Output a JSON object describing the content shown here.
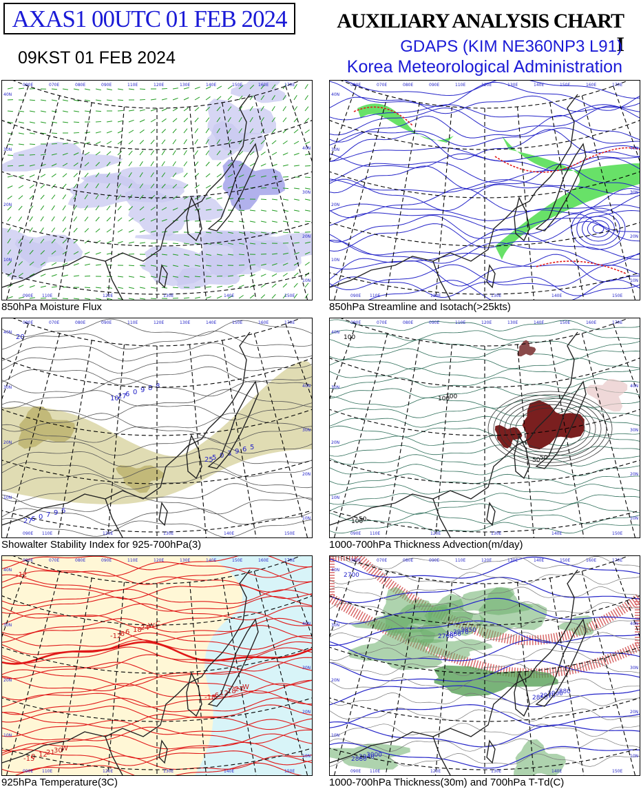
{
  "header": {
    "product_id": "AXAS1  00UTC 01 FEB 2024",
    "local_time": "09KST 01 FEB 2024",
    "chart_title": "AUXILIARY ANALYSIS CHART  I",
    "model": "GDAPS (KIM NE360NP3 L91)",
    "agency": "Korea Meteorological Administration"
  },
  "panels": [
    {
      "id": "moisture-flux",
      "caption": "850hPa Moisture Flux",
      "theme": "moisture"
    },
    {
      "id": "streamline-isotach",
      "caption": "850hPa Streamline and Isotach(>25kts)",
      "theme": "stream"
    },
    {
      "id": "showalter",
      "caption": "Showalter Stability Index for 925-700hPa(3)",
      "theme": "ssi",
      "labels": [
        "20",
        "10",
        "25",
        "27",
        "27",
        "5",
        "6",
        "6",
        "0",
        "0",
        "0",
        "3",
        "7",
        "9",
        "9",
        "9",
        "8",
        "6",
        "6",
        "8",
        "5"
      ]
    },
    {
      "id": "thickness-advection",
      "caption": "1000-700hPa Thickness Advection(m/day)",
      "theme": "adv",
      "labels": [
        "100",
        "100",
        "50",
        "100",
        "100",
        "50",
        "50"
      ]
    },
    {
      "id": "temperature-925",
      "caption": "925hPa Temperature(3C)",
      "theme": "temp",
      "labels": [
        "-12",
        "-12",
        "-18",
        "-15",
        "-6",
        "-6",
        "0",
        "6",
        "12",
        "12",
        "18",
        "18",
        "21",
        "24",
        "27",
        "30",
        "W",
        "W",
        "W",
        "C"
      ]
    },
    {
      "id": "thickness-ttd",
      "caption": "1000-700hPa Thickness(30m) and 700hPa T-Td(C)",
      "theme": "thick",
      "labels": [
        "2700",
        "2760",
        "2850",
        "2880",
        "2880",
        "2910",
        "2940",
        "2970",
        "3000",
        "3000",
        "2850",
        "2880"
      ]
    }
  ],
  "grid": {
    "lon_top": [
      "090E",
      "070E",
      "080E",
      "090E",
      "110E",
      "120E",
      "130E",
      "140E",
      "150E",
      "160E",
      "170E"
    ],
    "lon_bottom": [
      "090E",
      "110E",
      "120E",
      "130E",
      "140E",
      "150E"
    ],
    "lat_right": [
      "40N",
      "30N",
      "20N",
      "10N"
    ]
  },
  "colors": {
    "title_blue": "#1a1ad6",
    "moisture_fill": "#c8c8f0",
    "moisture_arrow": "#1f9b1f",
    "stream_line": "#2323c8",
    "isotach_green": "#4ddc4d",
    "isotach_red": "#e01818",
    "ssi_fill": "#d8d3a0",
    "adv_warm": "#7a1f1f",
    "temp_fill": "#fff7d6",
    "temp_cold": "#d8f4f8",
    "temp_line": "#e01818",
    "thick_green": "#6cae6c",
    "thick_line": "#2323c8"
  }
}
